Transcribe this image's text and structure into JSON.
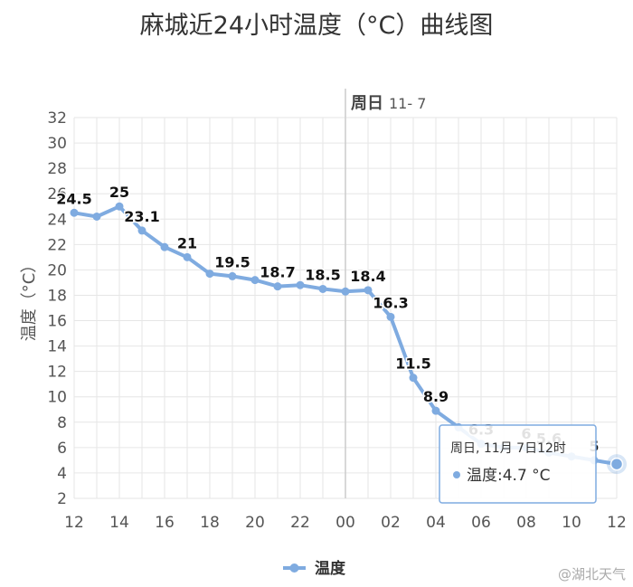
{
  "title": "麻城近24小时温度（°C）曲线图",
  "ylabel": "温度（°C）",
  "plot_band_label": {
    "day": "周日",
    "date": "11- 7"
  },
  "legend_label": "温度",
  "watermark": "@湖北天气",
  "tooltip": {
    "header": "周日, 11月 7日12时",
    "series": "温度",
    "value": "4.7",
    "unit": "°C"
  },
  "colors": {
    "series": "#7fabe0",
    "grid": "#e6e6e6",
    "plotband": "#cccccc"
  },
  "chart_data": {
    "type": "line",
    "title": "麻城近24小时温度（°C）曲线图",
    "ylabel": "温度（°C）",
    "xlabel": "",
    "ylim": [
      2,
      32
    ],
    "yticks": [
      2,
      4,
      6,
      8,
      10,
      12,
      14,
      16,
      18,
      20,
      22,
      24,
      26,
      28,
      30,
      32
    ],
    "xticks": [
      "12",
      "14",
      "16",
      "18",
      "20",
      "22",
      "00",
      "02",
      "04",
      "06",
      "08",
      "10",
      "12"
    ],
    "grid": true,
    "legend": "bottom-center",
    "series": [
      {
        "name": "温度",
        "hours": [
          12,
          13,
          14,
          15,
          16,
          17,
          18,
          19,
          20,
          21,
          22,
          23,
          0,
          1,
          2,
          3,
          4,
          5,
          6,
          7,
          8,
          9,
          10,
          11,
          12
        ],
        "values": [
          24.5,
          24.2,
          25,
          23.1,
          21.8,
          21,
          19.7,
          19.5,
          19.2,
          18.7,
          18.8,
          18.5,
          18.3,
          18.4,
          16.3,
          11.5,
          8.9,
          7.6,
          6.3,
          6.0,
          6,
          5.6,
          5.3,
          5,
          4.7
        ],
        "labels": [
          "24.5",
          "",
          "25",
          "23.1",
          "",
          "21",
          "",
          "19.5",
          "",
          "18.7",
          "",
          "18.5",
          "",
          "18.4",
          "16.3",
          "11.5",
          "8.9",
          "",
          "6.3",
          "",
          "6",
          "5.6",
          "",
          "5",
          ""
        ],
        "highlight_index": 24
      }
    ]
  }
}
